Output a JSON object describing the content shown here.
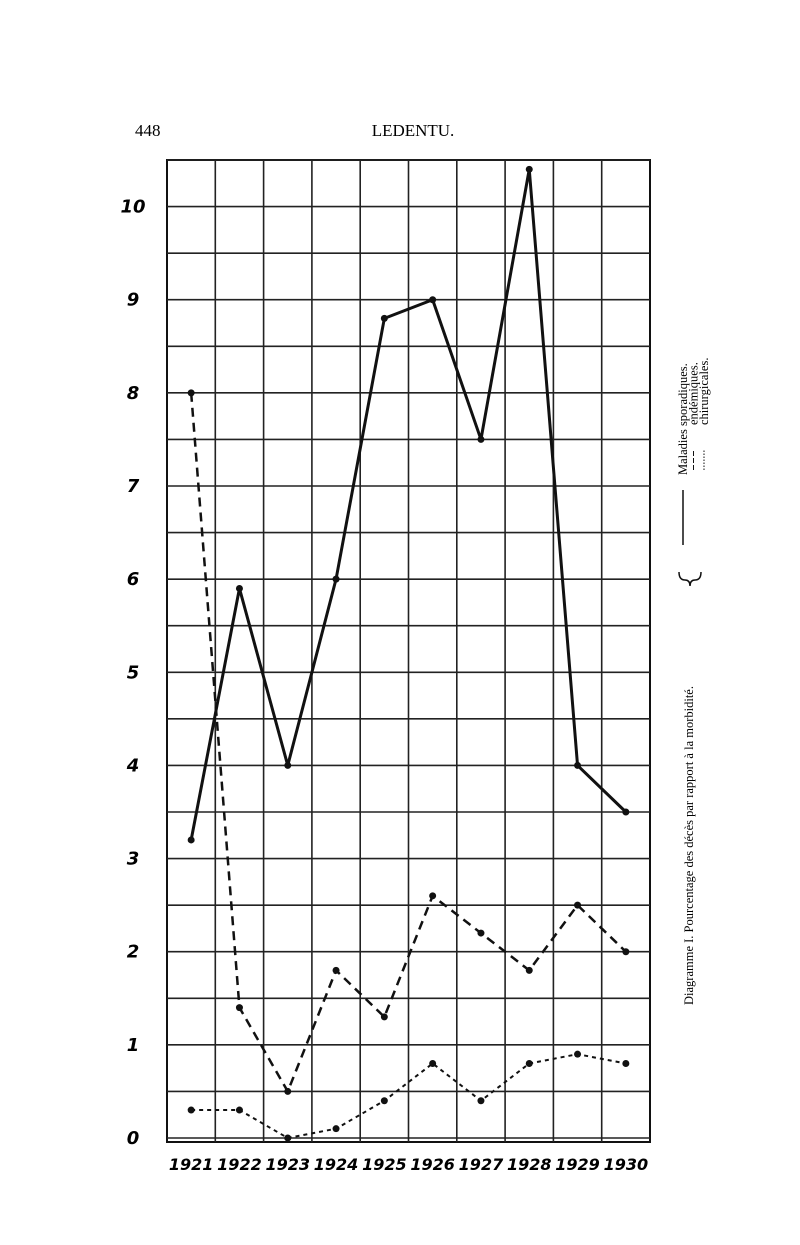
{
  "page_number": "448",
  "running_head": "LEDENTU.",
  "chart_data": {
    "type": "line",
    "caption": "Diagramme I. Pourcentage des décès par rapport à la morbidité.",
    "categories": [
      "1921",
      "1922",
      "1923",
      "1924",
      "1925",
      "1926",
      "1927",
      "1928",
      "1929",
      "1930"
    ],
    "series": [
      {
        "name": "Maladies sporadiques.",
        "color": "#111111",
        "line_style": "solid",
        "values": [
          3.2,
          5.9,
          4.0,
          6.0,
          8.8,
          9.0,
          7.5,
          10.4,
          4.0,
          3.5
        ]
      },
      {
        "name": "endémiques.",
        "color": "#111111",
        "line_style": "dashed",
        "values": [
          8.0,
          1.4,
          0.5,
          1.8,
          1.3,
          2.6,
          2.2,
          1.8,
          2.5,
          2.0
        ]
      },
      {
        "name": "chirurgicales.",
        "color": "#111111",
        "line_style": "dotted",
        "values": [
          0.3,
          0.3,
          0.0,
          0.1,
          0.4,
          0.8,
          0.4,
          0.8,
          0.9,
          0.8
        ]
      }
    ],
    "ylim": [
      0,
      10.5
    ],
    "yticks": [
      0,
      1,
      2,
      3,
      4,
      5,
      6,
      7,
      8,
      9,
      10
    ],
    "grid": true
  }
}
